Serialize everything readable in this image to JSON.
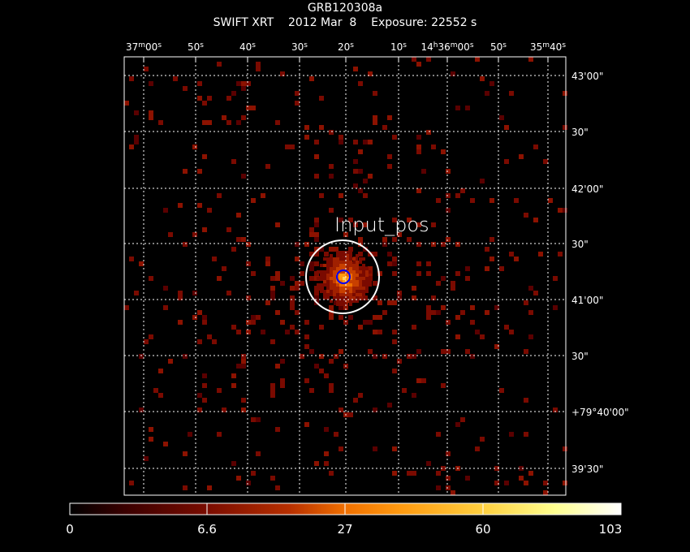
{
  "header": {
    "object_name": "GRB120308a",
    "instrument": "SWIFT XRT",
    "date": "2012 Mar  8",
    "exposure": "Exposure: 22552 s"
  },
  "ra_ticks": [
    {
      "main": "37",
      "sup": "m",
      "tail": "00",
      "sec": "s"
    },
    {
      "main": "50",
      "sup": "",
      "tail": "",
      "sec": "s"
    },
    {
      "main": "40",
      "sup": "",
      "tail": "",
      "sec": "s"
    },
    {
      "main": "30",
      "sup": "",
      "tail": "",
      "sec": "s"
    },
    {
      "main": "20",
      "sup": "",
      "tail": "",
      "sec": "s"
    },
    {
      "main": "10",
      "sup": "",
      "tail": "",
      "sec": "s"
    },
    {
      "main": "14",
      "sup": "h",
      "tail": "36",
      "sup2": "m",
      "tail2": "00",
      "sec": "s"
    },
    {
      "main": "50",
      "sup": "",
      "tail": "",
      "sec": "s"
    },
    {
      "main": "35",
      "sup": "m",
      "tail": "40",
      "sec": "s"
    }
  ],
  "dec_ticks": [
    "43'00\"",
    "30\"",
    "42'00\"",
    "30\"",
    "41'00\"",
    "30\"",
    "+79°40'00\"",
    "39'30\""
  ],
  "source": {
    "label": "Input_pos",
    "outer_circle_color": "#ffffff",
    "inner_circle_color": "#0000ff"
  },
  "colorbar": {
    "labels": [
      "0",
      "6.6",
      "27",
      "60",
      "103"
    ],
    "colors": [
      "#000000",
      "#5a0000",
      "#a01800",
      "#d85000",
      "#ff9000",
      "#ffd040",
      "#ffff90",
      "#ffffff"
    ]
  },
  "icons": {
    "grid": "dotted-coordinate-grid",
    "pixels": "xray-photon-counts"
  }
}
